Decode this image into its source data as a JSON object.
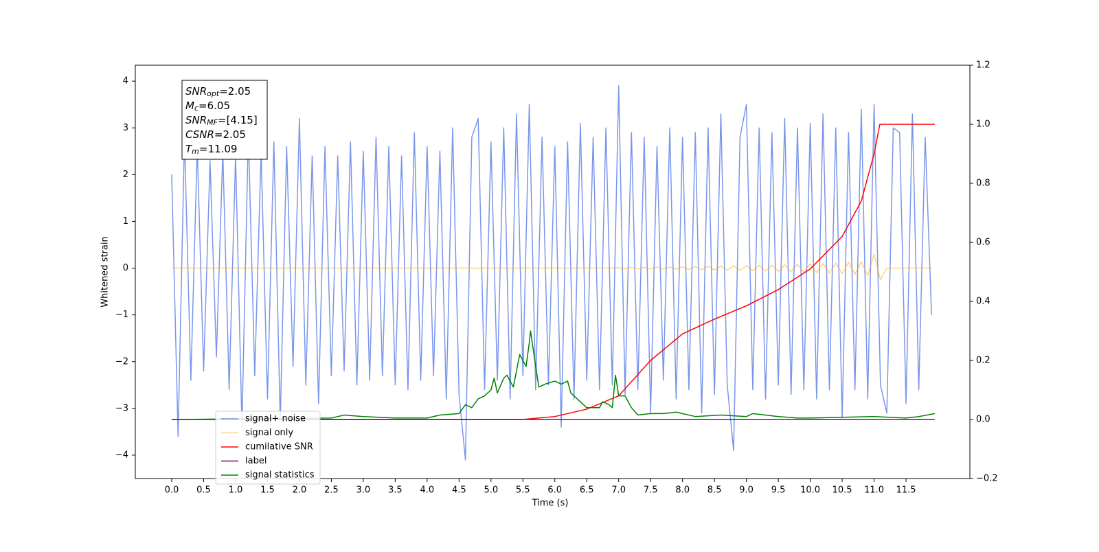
{
  "chart_data": {
    "type": "line",
    "xlabel": "Time (s)",
    "ylabel": "Whitened strain",
    "xlim": [
      -0.57,
      12.5
    ],
    "ylim": [
      -4.5,
      4.34
    ],
    "y2lim": [
      -0.2,
      1.2
    ],
    "xticks": [
      {
        "value": 0,
        "label": "0.0"
      },
      0.5,
      {
        "value": 1,
        "label": "1.0"
      },
      1.5,
      {
        "value": 2,
        "label": "2.0"
      },
      2.5,
      {
        "value": 3,
        "label": "3.0"
      },
      3.5,
      {
        "value": 4,
        "label": "4.0"
      },
      4.5,
      {
        "value": 5,
        "label": "5.0"
      },
      5.5,
      {
        "value": 6,
        "label": "6.0"
      },
      6.5,
      {
        "value": 7,
        "label": "7.0"
      },
      7.5,
      {
        "value": 8,
        "label": "8.0"
      },
      8.5,
      {
        "value": 9,
        "label": "9.0"
      },
      9.5,
      {
        "value": 10,
        "label": "10.0"
      },
      10.5,
      {
        "value": 11,
        "label": "11.0"
      },
      11.5
    ],
    "yticks": [
      {
        "value": -4,
        "label": "−4"
      },
      {
        "value": -3,
        "label": "−3"
      },
      {
        "value": -2,
        "label": "−2"
      },
      {
        "value": -1,
        "label": "−1"
      },
      0,
      1,
      2,
      3,
      4
    ],
    "y2ticks": [
      {
        "value": -0.2,
        "label": "−0.2"
      },
      {
        "value": 0,
        "label": "0.0"
      },
      0.2,
      0.4,
      0.6,
      0.8,
      {
        "value": 1,
        "label": "1.0"
      },
      1.2
    ],
    "grid": false,
    "legend": "lower left",
    "annotation": [
      {
        "main": "SNR",
        "sub": "opt",
        "text": "=2.05"
      },
      {
        "main": "M",
        "sub": "c",
        "text": "=6.05"
      },
      {
        "main": "SNR",
        "sub": "MF",
        "text": "=[4.15]"
      },
      {
        "main": "CSNR",
        "sub": null,
        "text": "=2.05"
      },
      {
        "main": "T",
        "sub": "m",
        "text": "=11.09"
      }
    ],
    "x": [
      0,
      0.1,
      0.2,
      0.3,
      0.4,
      0.5,
      0.6,
      0.7,
      0.8,
      0.9,
      1,
      1.1,
      1.2,
      1.3,
      1.4,
      1.5,
      1.6,
      1.7,
      1.8,
      1.9,
      2,
      2.1,
      2.2,
      2.3,
      2.4,
      2.5,
      2.6,
      2.7,
      2.8,
      2.9,
      3,
      3.1,
      3.2,
      3.3,
      3.4,
      3.5,
      3.6,
      3.7,
      3.8,
      3.9,
      4,
      4.1,
      4.2,
      4.3,
      4.4,
      4.5,
      4.6,
      4.7,
      4.8,
      4.9,
      5,
      5.1,
      5.2,
      5.3,
      5.4,
      5.5,
      5.6,
      5.7,
      5.8,
      5.9,
      6,
      6.1,
      6.2,
      6.3,
      6.4,
      6.5,
      6.6,
      6.7,
      6.8,
      6.9,
      7,
      7.1,
      7.2,
      7.3,
      7.4,
      7.5,
      7.6,
      7.7,
      7.8,
      7.9,
      8,
      8.1,
      8.2,
      8.3,
      8.4,
      8.5,
      8.6,
      8.7,
      8.8,
      8.9,
      9,
      9.1,
      9.2,
      9.3,
      9.4,
      9.5,
      9.6,
      9.7,
      9.8,
      9.9,
      10,
      10.1,
      10.2,
      10.3,
      10.4,
      10.5,
      10.6,
      10.7,
      10.8,
      10.9,
      11,
      11.1,
      11.2,
      11.3,
      11.4,
      11.5,
      11.6,
      11.7,
      11.8,
      11.9
    ],
    "series": [
      {
        "name": "signal+ noise",
        "color": "royalblue",
        "alpha": 0.7,
        "values": [
          2.0,
          -3.6,
          2.8,
          -2.4,
          2.6,
          -2.2,
          2.3,
          -1.9,
          2.5,
          -2.6,
          2.4,
          -3.4,
          2.9,
          -2.3,
          2.5,
          -2.8,
          2.7,
          -3.3,
          2.6,
          -2.1,
          3.2,
          -2.5,
          2.4,
          -2.9,
          2.6,
          -2.3,
          2.4,
          -2.2,
          2.7,
          -2.5,
          2.5,
          -2.4,
          2.8,
          -2.3,
          2.6,
          -2.5,
          2.4,
          -2.6,
          2.9,
          -2.4,
          2.6,
          -2.3,
          2.5,
          -2.8,
          3.0,
          -2.7,
          -4.1,
          2.8,
          3.2,
          -2.6,
          2.7,
          -2.4,
          3.0,
          -2.8,
          3.3,
          -2.3,
          3.5,
          -2.6,
          2.8,
          -2.5,
          2.6,
          -3.4,
          2.7,
          -2.8,
          3.1,
          -2.4,
          2.8,
          -2.6,
          3.0,
          -2.5,
          3.9,
          -2.7,
          2.9,
          -2.6,
          2.8,
          -3.1,
          2.6,
          -2.4,
          3.0,
          -2.8,
          2.8,
          -2.6,
          2.9,
          -3.1,
          3.0,
          -2.7,
          3.3,
          -2.5,
          -3.9,
          2.8,
          3.5,
          -2.6,
          3.0,
          -2.8,
          2.9,
          -2.5,
          3.2,
          -2.7,
          3.0,
          -2.6,
          3.1,
          -2.8,
          3.3,
          -2.6,
          3.0,
          -3.2,
          2.9,
          -2.6,
          3.4,
          -2.8,
          3.5,
          -2.5,
          -3.1,
          3.0,
          2.9,
          -2.9,
          3.3,
          -2.6,
          2.8,
          -1.0
        ]
      },
      {
        "name": "signal only",
        "color": "orange",
        "alpha": 0.5,
        "values": [
          0,
          0,
          0,
          0,
          0,
          0,
          0,
          0,
          0,
          0,
          0,
          0,
          0,
          0,
          0,
          0,
          0,
          0,
          0,
          0,
          0,
          0,
          0,
          0,
          0,
          0,
          0,
          0,
          0,
          0,
          0,
          0,
          0,
          0,
          0,
          0,
          0,
          0,
          0,
          0,
          0,
          0,
          0,
          0,
          0,
          0,
          0,
          0,
          0,
          0,
          0,
          0,
          0,
          0,
          0,
          0,
          0,
          0,
          0,
          0,
          0,
          0,
          0,
          0,
          0,
          0,
          0,
          0,
          0,
          0,
          0.01,
          -0.01,
          0.01,
          -0.015,
          0.015,
          -0.015,
          0.02,
          -0.02,
          0.02,
          -0.025,
          0.03,
          -0.03,
          0.035,
          -0.035,
          0.04,
          -0.04,
          0.045,
          -0.045,
          0.05,
          -0.05,
          0.055,
          -0.055,
          0.06,
          -0.06,
          0.065,
          -0.07,
          0.07,
          -0.075,
          0.08,
          -0.085,
          0.09,
          -0.095,
          0.1,
          -0.105,
          0.11,
          -0.12,
          0.125,
          -0.13,
          0.14,
          -0.16,
          0.3,
          -0.25,
          0,
          0,
          0,
          0,
          0,
          0,
          0,
          0
        ]
      },
      {
        "name": "cumilative SNR",
        "color": "red",
        "axis": "y2",
        "x": [
          0,
          5.5,
          6,
          6.5,
          7,
          7.5,
          8,
          8.5,
          9,
          9.5,
          10,
          10.5,
          10.8,
          11,
          11.09,
          11.95
        ],
        "values": [
          0,
          0,
          0.01,
          0.035,
          0.08,
          0.2,
          0.29,
          0.34,
          0.385,
          0.44,
          0.51,
          0.62,
          0.74,
          0.9,
          1.0,
          1.0
        ]
      },
      {
        "name": "label",
        "color": "purple",
        "axis": "y2",
        "x": [
          0,
          11.95
        ],
        "values": [
          0,
          0
        ]
      },
      {
        "name": "signal statistics",
        "color": "green",
        "axis": "y2",
        "x": [
          0,
          2.5,
          2.7,
          3.0,
          3.5,
          4.0,
          4.2,
          4.5,
          4.6,
          4.7,
          4.8,
          4.9,
          5.0,
          5.05,
          5.1,
          5.2,
          5.25,
          5.35,
          5.45,
          5.55,
          5.6,
          5.62,
          5.7,
          5.75,
          5.85,
          6.0,
          6.1,
          6.2,
          6.25,
          6.4,
          6.5,
          6.7,
          6.75,
          6.85,
          6.9,
          6.95,
          7.0,
          7.1,
          7.2,
          7.3,
          7.5,
          7.7,
          7.9,
          8.2,
          8.6,
          9.0,
          9.1,
          9.5,
          9.8,
          10.0,
          11.0,
          11.5,
          11.7,
          11.95
        ],
        "values": [
          0,
          0.005,
          0.015,
          0.01,
          0.005,
          0.005,
          0.015,
          0.02,
          0.05,
          0.04,
          0.07,
          0.08,
          0.1,
          0.14,
          0.09,
          0.14,
          0.15,
          0.11,
          0.22,
          0.18,
          0.26,
          0.3,
          0.18,
          0.11,
          0.12,
          0.13,
          0.12,
          0.13,
          0.09,
          0.06,
          0.04,
          0.04,
          0.06,
          0.05,
          0.04,
          0.15,
          0.08,
          0.08,
          0.04,
          0.015,
          0.02,
          0.02,
          0.025,
          0.01,
          0.015,
          0.01,
          0.02,
          0.01,
          0.005,
          0.005,
          0.01,
          0.005,
          0.01,
          0.02
        ]
      }
    ]
  }
}
